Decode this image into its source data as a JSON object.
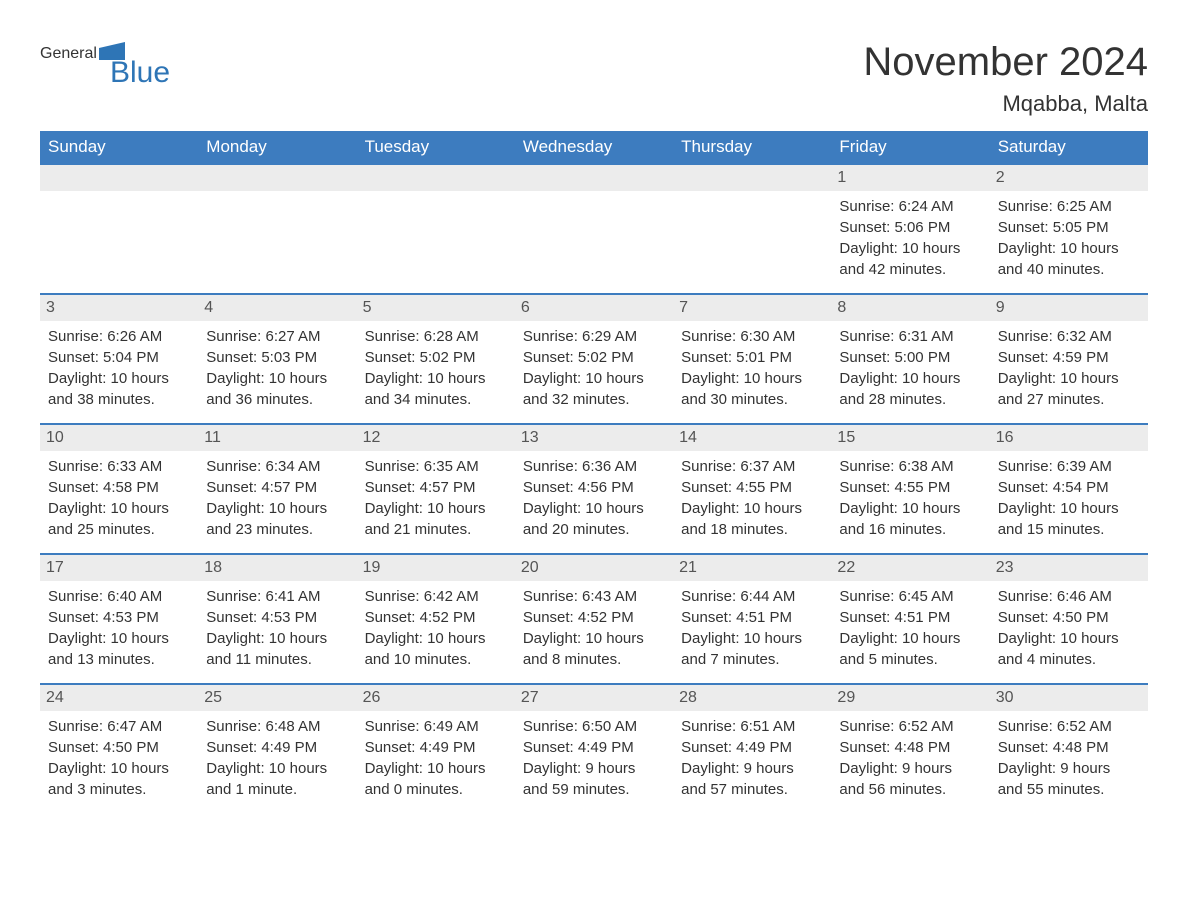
{
  "logo": {
    "line1": "General",
    "line2": "Blue",
    "icon_color": "#2e75b6"
  },
  "header": {
    "title": "November 2024",
    "location": "Mqabba, Malta"
  },
  "colors": {
    "header_bg": "#3d7cbf",
    "header_text": "#ffffff",
    "daynum_bg": "#ececec",
    "daynum_text": "#555555",
    "border": "#3d7cbf",
    "body_text": "#333333",
    "background": "#ffffff"
  },
  "typography": {
    "title_fontsize": 40,
    "location_fontsize": 22,
    "weekday_fontsize": 17,
    "day_fontsize": 15,
    "logo_fontsize": 30
  },
  "weekdays": [
    "Sunday",
    "Monday",
    "Tuesday",
    "Wednesday",
    "Thursday",
    "Friday",
    "Saturday"
  ],
  "weeks": [
    [
      {
        "blank": true
      },
      {
        "blank": true
      },
      {
        "blank": true
      },
      {
        "blank": true
      },
      {
        "blank": true
      },
      {
        "day": "1",
        "sunrise": "Sunrise: 6:24 AM",
        "sunset": "Sunset: 5:06 PM",
        "daylight1": "Daylight: 10 hours",
        "daylight2": "and 42 minutes."
      },
      {
        "day": "2",
        "sunrise": "Sunrise: 6:25 AM",
        "sunset": "Sunset: 5:05 PM",
        "daylight1": "Daylight: 10 hours",
        "daylight2": "and 40 minutes."
      }
    ],
    [
      {
        "day": "3",
        "sunrise": "Sunrise: 6:26 AM",
        "sunset": "Sunset: 5:04 PM",
        "daylight1": "Daylight: 10 hours",
        "daylight2": "and 38 minutes."
      },
      {
        "day": "4",
        "sunrise": "Sunrise: 6:27 AM",
        "sunset": "Sunset: 5:03 PM",
        "daylight1": "Daylight: 10 hours",
        "daylight2": "and 36 minutes."
      },
      {
        "day": "5",
        "sunrise": "Sunrise: 6:28 AM",
        "sunset": "Sunset: 5:02 PM",
        "daylight1": "Daylight: 10 hours",
        "daylight2": "and 34 minutes."
      },
      {
        "day": "6",
        "sunrise": "Sunrise: 6:29 AM",
        "sunset": "Sunset: 5:02 PM",
        "daylight1": "Daylight: 10 hours",
        "daylight2": "and 32 minutes."
      },
      {
        "day": "7",
        "sunrise": "Sunrise: 6:30 AM",
        "sunset": "Sunset: 5:01 PM",
        "daylight1": "Daylight: 10 hours",
        "daylight2": "and 30 minutes."
      },
      {
        "day": "8",
        "sunrise": "Sunrise: 6:31 AM",
        "sunset": "Sunset: 5:00 PM",
        "daylight1": "Daylight: 10 hours",
        "daylight2": "and 28 minutes."
      },
      {
        "day": "9",
        "sunrise": "Sunrise: 6:32 AM",
        "sunset": "Sunset: 4:59 PM",
        "daylight1": "Daylight: 10 hours",
        "daylight2": "and 27 minutes."
      }
    ],
    [
      {
        "day": "10",
        "sunrise": "Sunrise: 6:33 AM",
        "sunset": "Sunset: 4:58 PM",
        "daylight1": "Daylight: 10 hours",
        "daylight2": "and 25 minutes."
      },
      {
        "day": "11",
        "sunrise": "Sunrise: 6:34 AM",
        "sunset": "Sunset: 4:57 PM",
        "daylight1": "Daylight: 10 hours",
        "daylight2": "and 23 minutes."
      },
      {
        "day": "12",
        "sunrise": "Sunrise: 6:35 AM",
        "sunset": "Sunset: 4:57 PM",
        "daylight1": "Daylight: 10 hours",
        "daylight2": "and 21 minutes."
      },
      {
        "day": "13",
        "sunrise": "Sunrise: 6:36 AM",
        "sunset": "Sunset: 4:56 PM",
        "daylight1": "Daylight: 10 hours",
        "daylight2": "and 20 minutes."
      },
      {
        "day": "14",
        "sunrise": "Sunrise: 6:37 AM",
        "sunset": "Sunset: 4:55 PM",
        "daylight1": "Daylight: 10 hours",
        "daylight2": "and 18 minutes."
      },
      {
        "day": "15",
        "sunrise": "Sunrise: 6:38 AM",
        "sunset": "Sunset: 4:55 PM",
        "daylight1": "Daylight: 10 hours",
        "daylight2": "and 16 minutes."
      },
      {
        "day": "16",
        "sunrise": "Sunrise: 6:39 AM",
        "sunset": "Sunset: 4:54 PM",
        "daylight1": "Daylight: 10 hours",
        "daylight2": "and 15 minutes."
      }
    ],
    [
      {
        "day": "17",
        "sunrise": "Sunrise: 6:40 AM",
        "sunset": "Sunset: 4:53 PM",
        "daylight1": "Daylight: 10 hours",
        "daylight2": "and 13 minutes."
      },
      {
        "day": "18",
        "sunrise": "Sunrise: 6:41 AM",
        "sunset": "Sunset: 4:53 PM",
        "daylight1": "Daylight: 10 hours",
        "daylight2": "and 11 minutes."
      },
      {
        "day": "19",
        "sunrise": "Sunrise: 6:42 AM",
        "sunset": "Sunset: 4:52 PM",
        "daylight1": "Daylight: 10 hours",
        "daylight2": "and 10 minutes."
      },
      {
        "day": "20",
        "sunrise": "Sunrise: 6:43 AM",
        "sunset": "Sunset: 4:52 PM",
        "daylight1": "Daylight: 10 hours",
        "daylight2": "and 8 minutes."
      },
      {
        "day": "21",
        "sunrise": "Sunrise: 6:44 AM",
        "sunset": "Sunset: 4:51 PM",
        "daylight1": "Daylight: 10 hours",
        "daylight2": "and 7 minutes."
      },
      {
        "day": "22",
        "sunrise": "Sunrise: 6:45 AM",
        "sunset": "Sunset: 4:51 PM",
        "daylight1": "Daylight: 10 hours",
        "daylight2": "and 5 minutes."
      },
      {
        "day": "23",
        "sunrise": "Sunrise: 6:46 AM",
        "sunset": "Sunset: 4:50 PM",
        "daylight1": "Daylight: 10 hours",
        "daylight2": "and 4 minutes."
      }
    ],
    [
      {
        "day": "24",
        "sunrise": "Sunrise: 6:47 AM",
        "sunset": "Sunset: 4:50 PM",
        "daylight1": "Daylight: 10 hours",
        "daylight2": "and 3 minutes."
      },
      {
        "day": "25",
        "sunrise": "Sunrise: 6:48 AM",
        "sunset": "Sunset: 4:49 PM",
        "daylight1": "Daylight: 10 hours",
        "daylight2": "and 1 minute."
      },
      {
        "day": "26",
        "sunrise": "Sunrise: 6:49 AM",
        "sunset": "Sunset: 4:49 PM",
        "daylight1": "Daylight: 10 hours",
        "daylight2": "and 0 minutes."
      },
      {
        "day": "27",
        "sunrise": "Sunrise: 6:50 AM",
        "sunset": "Sunset: 4:49 PM",
        "daylight1": "Daylight: 9 hours",
        "daylight2": "and 59 minutes."
      },
      {
        "day": "28",
        "sunrise": "Sunrise: 6:51 AM",
        "sunset": "Sunset: 4:49 PM",
        "daylight1": "Daylight: 9 hours",
        "daylight2": "and 57 minutes."
      },
      {
        "day": "29",
        "sunrise": "Sunrise: 6:52 AM",
        "sunset": "Sunset: 4:48 PM",
        "daylight1": "Daylight: 9 hours",
        "daylight2": "and 56 minutes."
      },
      {
        "day": "30",
        "sunrise": "Sunrise: 6:52 AM",
        "sunset": "Sunset: 4:48 PM",
        "daylight1": "Daylight: 9 hours",
        "daylight2": "and 55 minutes."
      }
    ]
  ]
}
